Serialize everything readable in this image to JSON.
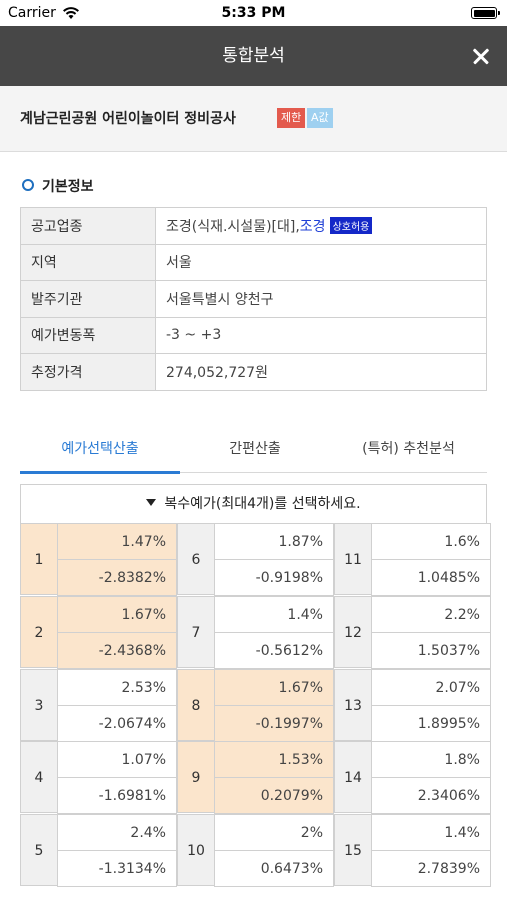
{
  "status_bar": {
    "carrier": "Carrier",
    "time": "5:33 PM"
  },
  "nav": {
    "title": "통합분석"
  },
  "project": {
    "title": "계남근린공원 어린이놀이터 정비공사",
    "badge_limit": "제한",
    "badge_a": "A값"
  },
  "section": {
    "basic_info": "기본정보"
  },
  "info": {
    "rows": [
      {
        "label": "공고업종"
      },
      {
        "label": "지역",
        "value": "서울"
      },
      {
        "label": "발주기관",
        "value": "서울특별시 양천구"
      },
      {
        "label": "예가변동폭",
        "value": "-3 ~ +3"
      },
      {
        "label": "추정가격",
        "value": "274,052,727원"
      }
    ],
    "category_prefix": "조경(식재.시설물)[대],",
    "category_link": "조경",
    "category_badge": "상호허용"
  },
  "tabs": [
    "예가선택산출",
    "간편산출",
    "(특허) 추천분석"
  ],
  "selector": {
    "label": "복수예가(최대4개)를 선택하세요."
  },
  "prices": [
    {
      "no": "1",
      "top": "1.47%",
      "bottom": "-2.8382%",
      "selected": true
    },
    {
      "no": "2",
      "top": "1.67%",
      "bottom": "-2.4368%",
      "selected": true
    },
    {
      "no": "3",
      "top": "2.53%",
      "bottom": "-2.0674%",
      "selected": false
    },
    {
      "no": "4",
      "top": "1.07%",
      "bottom": "-1.6981%",
      "selected": false
    },
    {
      "no": "5",
      "top": "2.4%",
      "bottom": "-1.3134%",
      "selected": false
    },
    {
      "no": "6",
      "top": "1.87%",
      "bottom": "-0.9198%",
      "selected": false
    },
    {
      "no": "7",
      "top": "1.4%",
      "bottom": "-0.5612%",
      "selected": false
    },
    {
      "no": "8",
      "top": "1.67%",
      "bottom": "-0.1997%",
      "selected": true
    },
    {
      "no": "9",
      "top": "1.53%",
      "bottom": "0.2079%",
      "selected": true
    },
    {
      "no": "10",
      "top": "2%",
      "bottom": "0.6473%",
      "selected": false
    },
    {
      "no": "11",
      "top": "1.6%",
      "bottom": "1.0485%",
      "selected": false
    },
    {
      "no": "12",
      "top": "2.2%",
      "bottom": "1.5037%",
      "selected": false
    },
    {
      "no": "13",
      "top": "2.07%",
      "bottom": "1.8995%",
      "selected": false
    },
    {
      "no": "14",
      "top": "1.8%",
      "bottom": "2.3406%",
      "selected": false
    },
    {
      "no": "15",
      "top": "1.4%",
      "bottom": "2.7839%",
      "selected": false
    }
  ],
  "colors": {
    "nav_bg": "#474747",
    "accent": "#2a7bd4",
    "selected_cell": "#fbe5cc",
    "badge_limit": "#e35a4d",
    "badge_mutual": "#1428c8"
  }
}
